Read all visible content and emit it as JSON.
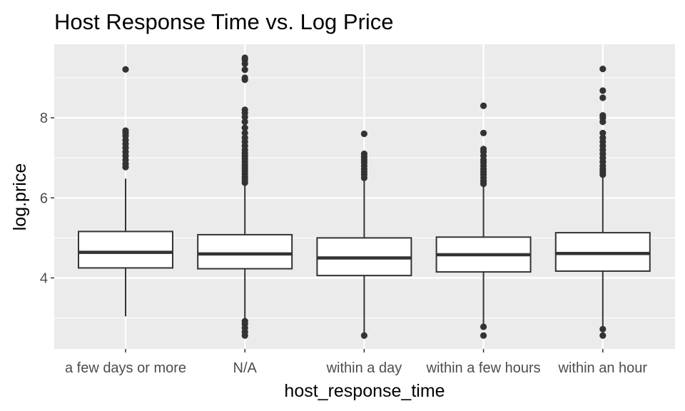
{
  "chart_data": {
    "type": "boxplot",
    "title": "Host Response Time vs. Log Price",
    "xlabel": "host_response_time",
    "ylabel": "log.price",
    "ylim": [
      2.2,
      9.7
    ],
    "y_ticks": [
      4,
      6,
      8
    ],
    "y_minor_ticks": [
      3,
      5,
      7,
      9
    ],
    "grid": true,
    "legend": "none",
    "categories": [
      "a few days or more",
      "N/A",
      "within a day",
      "within a few hours",
      "within an hour"
    ],
    "boxes": [
      {
        "category": "a few days or more",
        "whisker_low": 3.04,
        "q1": 4.25,
        "median": 4.64,
        "q3": 5.16,
        "whisker_high": 6.48,
        "outliers": [
          6.77,
          6.85,
          6.95,
          7.05,
          7.15,
          7.25,
          7.35,
          7.45,
          7.55,
          7.62,
          7.68,
          9.21
        ]
      },
      {
        "category": "N/A",
        "whisker_low": 2.99,
        "q1": 4.23,
        "median": 4.6,
        "q3": 5.08,
        "whisker_high": 6.33,
        "outliers": [
          2.56,
          2.65,
          2.75,
          2.85,
          2.92,
          6.38,
          6.45,
          6.52,
          6.6,
          6.68,
          6.75,
          6.82,
          6.9,
          6.98,
          7.05,
          7.12,
          7.2,
          7.3,
          7.4,
          7.5,
          7.62,
          7.75,
          7.9,
          8.02,
          8.12,
          8.2,
          8.95,
          9.0,
          9.2,
          9.35,
          9.45,
          9.5
        ]
      },
      {
        "category": "within a day",
        "whisker_low": 2.56,
        "q1": 4.06,
        "median": 4.5,
        "q3": 5.0,
        "whisker_high": 6.45,
        "outliers": [
          2.56,
          6.5,
          6.58,
          6.65,
          6.72,
          6.8,
          6.88,
          6.95,
          7.02,
          7.1,
          7.6
        ]
      },
      {
        "category": "within a few hours",
        "whisker_low": 2.84,
        "q1": 4.15,
        "median": 4.58,
        "q3": 5.02,
        "whisker_high": 6.3,
        "outliers": [
          2.56,
          2.78,
          6.35,
          6.42,
          6.5,
          6.58,
          6.65,
          6.72,
          6.8,
          6.88,
          6.95,
          7.05,
          7.15,
          7.22,
          7.62,
          8.3
        ]
      },
      {
        "category": "within an hour",
        "whisker_low": 2.8,
        "q1": 4.17,
        "median": 4.61,
        "q3": 5.13,
        "whisker_high": 6.5,
        "outliers": [
          2.56,
          2.72,
          6.58,
          6.65,
          6.72,
          6.8,
          6.9,
          7.0,
          7.1,
          7.2,
          7.3,
          7.4,
          7.5,
          7.62,
          7.9,
          8.0,
          8.06,
          8.5,
          8.68,
          9.22
        ]
      }
    ],
    "colors": {
      "panel_background": "#EBEBEB",
      "gridline": "#FFFFFF",
      "box_fill": "#FFFFFF",
      "box_line": "#333333",
      "outlier": "#333333",
      "tick_label": "#4D4D4D",
      "tick_mark": "#333333"
    }
  }
}
